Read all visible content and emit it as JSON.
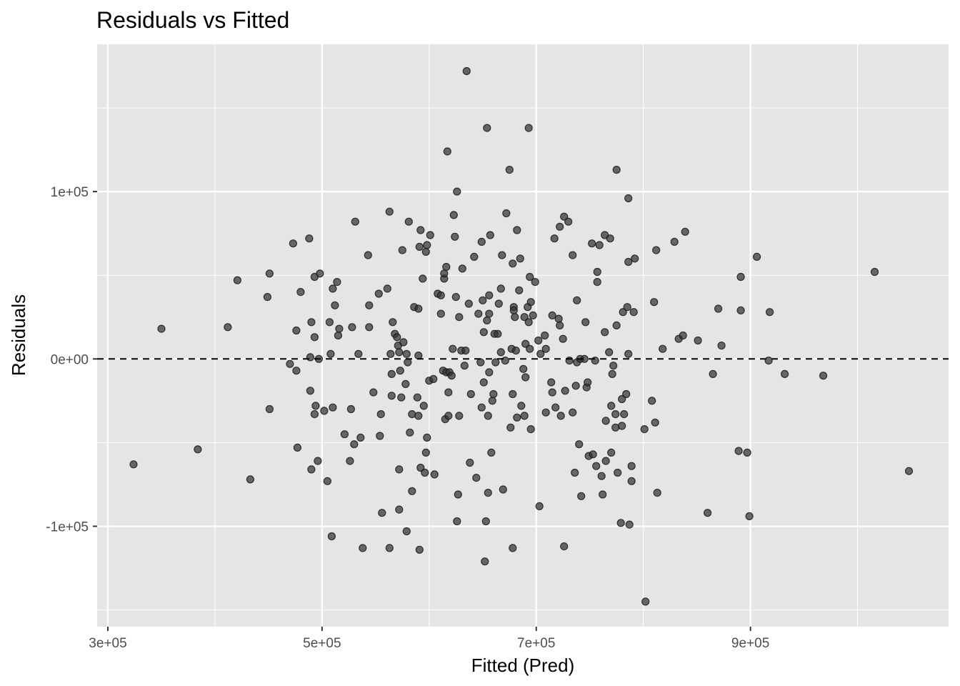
{
  "chart_data": {
    "type": "scatter",
    "title": "Residuals vs Fitted",
    "xlabel": "Fitted (Pred)",
    "ylabel": "Residuals",
    "xlim": [
      290000,
      1085000
    ],
    "ylim": [
      -160000,
      188000
    ],
    "x_ticks": [
      300000,
      500000,
      700000,
      900000
    ],
    "x_tick_labels": [
      "3e+05",
      "5e+05",
      "7e+05",
      "9e+05"
    ],
    "y_ticks": [
      -100000,
      0,
      100000
    ],
    "y_tick_labels": [
      "-1e+05",
      "0e+00",
      "1e+05"
    ],
    "reference_line": {
      "y": 0,
      "style": "dashed",
      "color": "#000000"
    },
    "grid": true,
    "point_color": "#333333",
    "panel_color": "#e5e5e5",
    "points": [
      [
        324000,
        -63000
      ],
      [
        350000,
        18000
      ],
      [
        384000,
        -54000
      ],
      [
        412000,
        19000
      ],
      [
        421000,
        47000
      ],
      [
        433000,
        -72000
      ],
      [
        449000,
        37000
      ],
      [
        451000,
        51000
      ],
      [
        451000,
        -30000
      ],
      [
        470000,
        -3000
      ],
      [
        473000,
        69000
      ],
      [
        476000,
        17000
      ],
      [
        476000,
        -7000
      ],
      [
        477000,
        -53000
      ],
      [
        480000,
        40000
      ],
      [
        488000,
        72000
      ],
      [
        489000,
        1000
      ],
      [
        489000,
        -19000
      ],
      [
        490000,
        22000
      ],
      [
        490000,
        -66000
      ],
      [
        493000,
        49000
      ],
      [
        493000,
        13000
      ],
      [
        493000,
        -33000
      ],
      [
        494000,
        -28000
      ],
      [
        496000,
        -61000
      ],
      [
        497000,
        0
      ],
      [
        498000,
        51000
      ],
      [
        502000,
        -31000
      ],
      [
        505000,
        -73000
      ],
      [
        507000,
        22000
      ],
      [
        508000,
        3000
      ],
      [
        509000,
        -106000
      ],
      [
        510000,
        -29000
      ],
      [
        510000,
        42000
      ],
      [
        512000,
        32000
      ],
      [
        514000,
        46000
      ],
      [
        515000,
        14000
      ],
      [
        516000,
        18000
      ],
      [
        521000,
        -45000
      ],
      [
        526000,
        -61000
      ],
      [
        527000,
        -30000
      ],
      [
        528000,
        19000
      ],
      [
        530000,
        -51000
      ],
      [
        531000,
        82000
      ],
      [
        534000,
        3000
      ],
      [
        536000,
        -47000
      ],
      [
        538000,
        -113000
      ],
      [
        543000,
        62000
      ],
      [
        544000,
        32000
      ],
      [
        544000,
        19000
      ],
      [
        548000,
        -20000
      ],
      [
        553000,
        39000
      ],
      [
        554000,
        -46000
      ],
      [
        555000,
        -33000
      ],
      [
        556000,
        -92000
      ],
      [
        561000,
        42000
      ],
      [
        563000,
        88000
      ],
      [
        563000,
        -113000
      ],
      [
        564000,
        3000
      ],
      [
        565000,
        -9000
      ],
      [
        565000,
        -22000
      ],
      [
        566000,
        22000
      ],
      [
        568000,
        15000
      ],
      [
        570000,
        13000
      ],
      [
        571000,
        8000
      ],
      [
        572000,
        -66000
      ],
      [
        572000,
        4000
      ],
      [
        572000,
        -90000
      ],
      [
        573000,
        -7000
      ],
      [
        574000,
        -23000
      ],
      [
        575000,
        65000
      ],
      [
        576000,
        10000
      ],
      [
        578000,
        -15000
      ],
      [
        579000,
        -103000
      ],
      [
        579000,
        3000
      ],
      [
        580000,
        -2000
      ],
      [
        581000,
        82000
      ],
      [
        582000,
        -44000
      ],
      [
        584000,
        -79000
      ],
      [
        584000,
        -33000
      ],
      [
        586000,
        31000
      ],
      [
        589000,
        -23000
      ],
      [
        590000,
        30000
      ],
      [
        590000,
        2000
      ],
      [
        590000,
        -34000
      ],
      [
        591000,
        -114000
      ],
      [
        591000,
        67000
      ],
      [
        592000,
        77000
      ],
      [
        592000,
        -65000
      ],
      [
        594000,
        48000
      ],
      [
        595000,
        -28000
      ],
      [
        596000,
        -68000
      ],
      [
        597000,
        -56000
      ],
      [
        597000,
        64000
      ],
      [
        598000,
        68000
      ],
      [
        598000,
        -47000
      ],
      [
        600000,
        -13000
      ],
      [
        601000,
        74000
      ],
      [
        604000,
        -12000
      ],
      [
        605000,
        -69000
      ],
      [
        608000,
        39000
      ],
      [
        611000,
        27000
      ],
      [
        611000,
        38000
      ],
      [
        613000,
        -7000
      ],
      [
        614000,
        48000
      ],
      [
        614000,
        51000
      ],
      [
        615000,
        -36000
      ],
      [
        616000,
        55000
      ],
      [
        616000,
        -8000
      ],
      [
        617000,
        124000
      ],
      [
        618000,
        -34000
      ],
      [
        618000,
        -20000
      ],
      [
        619000,
        -8000
      ],
      [
        621000,
        -10000
      ],
      [
        622000,
        6000
      ],
      [
        623000,
        86000
      ],
      [
        624000,
        73000
      ],
      [
        625000,
        37000
      ],
      [
        626000,
        100000
      ],
      [
        626000,
        -97000
      ],
      [
        627000,
        -81000
      ],
      [
        628000,
        -34000
      ],
      [
        628000,
        25000
      ],
      [
        630000,
        5000
      ],
      [
        631000,
        54000
      ],
      [
        633000,
        -4000
      ],
      [
        634000,
        5000
      ],
      [
        635000,
        172000
      ],
      [
        637000,
        33000
      ],
      [
        638000,
        -62000
      ],
      [
        639000,
        -21000
      ],
      [
        642000,
        61000
      ],
      [
        644000,
        -71000
      ],
      [
        646000,
        27000
      ],
      [
        648000,
        -2000
      ],
      [
        649000,
        70000
      ],
      [
        649000,
        -29000
      ],
      [
        650000,
        35000
      ],
      [
        651000,
        -14000
      ],
      [
        651000,
        16000
      ],
      [
        652000,
        -121000
      ],
      [
        653000,
        -97000
      ],
      [
        654000,
        138000
      ],
      [
        654000,
        23000
      ],
      [
        655000,
        -34000
      ],
      [
        655000,
        -80000
      ],
      [
        656000,
        27000
      ],
      [
        656000,
        38000
      ],
      [
        656000,
        -8000
      ],
      [
        657000,
        74000
      ],
      [
        658000,
        -56000
      ],
      [
        659000,
        -25000
      ],
      [
        660000,
        -21000
      ],
      [
        661000,
        15000
      ],
      [
        662000,
        -2000
      ],
      [
        664000,
        15000
      ],
      [
        665000,
        33000
      ],
      [
        667000,
        42000
      ],
      [
        667000,
        4000
      ],
      [
        668000,
        62000
      ],
      [
        669000,
        -78000
      ],
      [
        671000,
        -1000
      ],
      [
        672000,
        87000
      ],
      [
        675000,
        113000
      ],
      [
        676000,
        -41000
      ],
      [
        677000,
        6000
      ],
      [
        678000,
        -21000
      ],
      [
        678000,
        57000
      ],
      [
        678000,
        -113000
      ],
      [
        679000,
        31000
      ],
      [
        679000,
        29000
      ],
      [
        680000,
        25000
      ],
      [
        681000,
        5000
      ],
      [
        682000,
        77000
      ],
      [
        682000,
        -35000
      ],
      [
        684000,
        41000
      ],
      [
        685000,
        60000
      ],
      [
        686000,
        -28000
      ],
      [
        688000,
        -6000
      ],
      [
        689000,
        -34000
      ],
      [
        689000,
        25000
      ],
      [
        690000,
        9000
      ],
      [
        690000,
        -11000
      ],
      [
        692000,
        31000
      ],
      [
        693000,
        138000
      ],
      [
        693000,
        22000
      ],
      [
        694000,
        49000
      ],
      [
        694000,
        6000
      ],
      [
        695000,
        -42000
      ],
      [
        695000,
        34000
      ],
      [
        697000,
        26000
      ],
      [
        699000,
        46000
      ],
      [
        702000,
        11000
      ],
      [
        703000,
        -88000
      ],
      [
        704000,
        3000
      ],
      [
        708000,
        14000
      ],
      [
        709000,
        6000
      ],
      [
        709000,
        -32000
      ],
      [
        714000,
        -14000
      ],
      [
        715000,
        26000
      ],
      [
        715000,
        -20000
      ],
      [
        717000,
        72000
      ],
      [
        718000,
        -29000
      ],
      [
        721000,
        24000
      ],
      [
        722000,
        79000
      ],
      [
        722000,
        20000
      ],
      [
        723000,
        -34000
      ],
      [
        725000,
        12000
      ],
      [
        726000,
        85000
      ],
      [
        726000,
        -112000
      ],
      [
        727000,
        -19000
      ],
      [
        730000,
        82000
      ],
      [
        731000,
        -1000
      ],
      [
        734000,
        -32000
      ],
      [
        734000,
        62000
      ],
      [
        736000,
        -68000
      ],
      [
        737000,
        -16000
      ],
      [
        738000,
        35000
      ],
      [
        738000,
        -2000
      ],
      [
        740000,
        -51000
      ],
      [
        741000,
        0
      ],
      [
        742000,
        -82000
      ],
      [
        745000,
        0
      ],
      [
        746000,
        22000
      ],
      [
        747000,
        -17000
      ],
      [
        748000,
        -14000
      ],
      [
        749000,
        -58000
      ],
      [
        752000,
        69000
      ],
      [
        753000,
        -57000
      ],
      [
        755000,
        -1000
      ],
      [
        756000,
        -64000
      ],
      [
        757000,
        52000
      ],
      [
        757000,
        46000
      ],
      [
        759000,
        68000
      ],
      [
        761000,
        -70000
      ],
      [
        762000,
        -81000
      ],
      [
        764000,
        16000
      ],
      [
        764000,
        74000
      ],
      [
        765000,
        -61000
      ],
      [
        765000,
        -37000
      ],
      [
        768000,
        4000
      ],
      [
        769000,
        72000
      ],
      [
        770000,
        -28000
      ],
      [
        770000,
        -56000
      ],
      [
        771000,
        -9000
      ],
      [
        772000,
        -4000
      ],
      [
        774000,
        -33000
      ],
      [
        774000,
        -41000
      ],
      [
        775000,
        20000
      ],
      [
        775000,
        113000
      ],
      [
        776000,
        -68000
      ],
      [
        779000,
        -98000
      ],
      [
        780000,
        -24000
      ],
      [
        780000,
        -40000
      ],
      [
        781000,
        28000
      ],
      [
        782000,
        -33000
      ],
      [
        784000,
        -21000
      ],
      [
        785000,
        31000
      ],
      [
        786000,
        96000
      ],
      [
        786000,
        58000
      ],
      [
        786000,
        3000
      ],
      [
        787000,
        -99000
      ],
      [
        789000,
        -64000
      ],
      [
        789000,
        -73000
      ],
      [
        791000,
        28000
      ],
      [
        792000,
        60000
      ],
      [
        801000,
        -42000
      ],
      [
        802000,
        -145000
      ],
      [
        808000,
        -25000
      ],
      [
        810000,
        34000
      ],
      [
        811000,
        -38000
      ],
      [
        812000,
        65000
      ],
      [
        813000,
        -80000
      ],
      [
        818000,
        6000
      ],
      [
        829000,
        70000
      ],
      [
        833000,
        12000
      ],
      [
        837000,
        14000
      ],
      [
        839000,
        76000
      ],
      [
        851000,
        11000
      ],
      [
        860000,
        -92000
      ],
      [
        865000,
        -9000
      ],
      [
        870000,
        30000
      ],
      [
        873000,
        8000
      ],
      [
        889000,
        -55000
      ],
      [
        891000,
        29000
      ],
      [
        891000,
        49000
      ],
      [
        897000,
        -56000
      ],
      [
        899000,
        -94000
      ],
      [
        906000,
        61000
      ],
      [
        917000,
        -1000
      ],
      [
        918000,
        28000
      ],
      [
        932000,
        -9000
      ],
      [
        968000,
        -10000
      ],
      [
        1016000,
        52000
      ],
      [
        1048000,
        -67000
      ]
    ]
  }
}
